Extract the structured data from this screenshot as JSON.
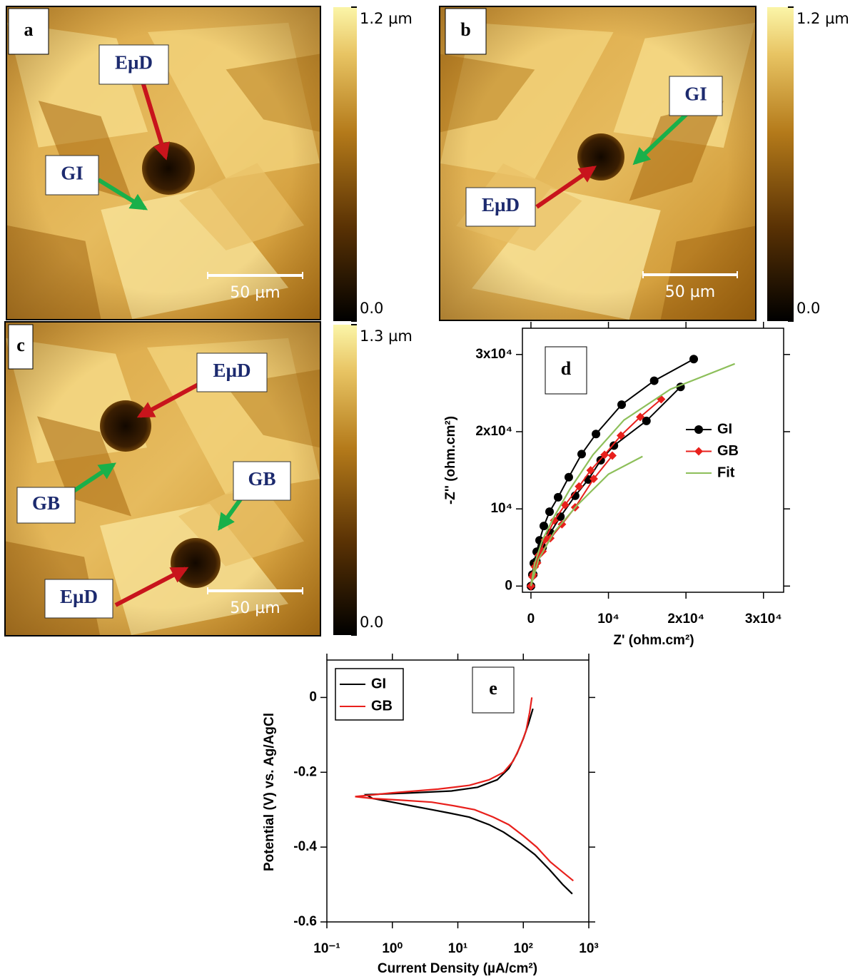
{
  "chart_data": [
    {
      "type": "image",
      "panel_label": "a",
      "scale_bar_label": "50 µm",
      "annotations": [
        "EµD",
        "GI"
      ],
      "colorbar_lim": [
        0,
        1.2
      ],
      "colorbar_ticks": [
        {
          "value": 1.2,
          "label": "1.2 µm"
        },
        {
          "value": 0,
          "label": "0.0"
        }
      ]
    },
    {
      "type": "image",
      "panel_label": "b",
      "scale_bar_label": "50 µm",
      "annotations": [
        "GI",
        "EµD"
      ],
      "colorbar_lim": [
        0,
        1.2
      ],
      "colorbar_ticks": [
        {
          "value": 1.2,
          "label": "1.2 µm"
        },
        {
          "value": 0,
          "label": "0.0"
        }
      ]
    },
    {
      "type": "image",
      "panel_label": "c",
      "scale_bar_label": "50 µm",
      "annotations": [
        "EµD",
        "GB",
        "GB",
        "EµD"
      ],
      "colorbar_lim": [
        0,
        1.3
      ],
      "colorbar_ticks": [
        {
          "value": 1.3,
          "label": "1.3 µm"
        },
        {
          "value": 0,
          "label": "0.0"
        }
      ]
    },
    {
      "type": "line",
      "panel_label": "d",
      "x_label": "Z' (ohm.cm²)",
      "y_label": "-Z'' (ohm.cm²)",
      "xlim": [
        -1100,
        32600
      ],
      "ylim": [
        -800,
        33400
      ],
      "xticks": [
        0,
        {
          "value": 10000,
          "label": "10⁴"
        },
        {
          "value": 20000,
          "label": "2x10⁴"
        },
        {
          "value": 30000,
          "label": "3x10⁴"
        }
      ],
      "yticks": [
        0,
        {
          "value": 10000,
          "label": "10⁴"
        },
        {
          "value": 20000,
          "label": "2x10⁴"
        },
        {
          "value": 30000,
          "label": "3x10⁴"
        }
      ],
      "legend": "center right",
      "series": [
        {
          "name": "GI",
          "color": "#000000",
          "marker": "circle",
          "x": [
            0,
            180,
            370,
            740,
            1110,
            1660,
            2400,
            3500,
            4880,
            6540,
            8390,
            11700,
            15900,
            21000,
            null,
            0,
            300,
            700,
            1500,
            2500,
            3800,
            5700,
            7400,
            9000,
            10700,
            14900,
            19300
          ],
          "values": [
            0,
            1480,
            2960,
            4440,
            5930,
            7780,
            9630,
            11500,
            14100,
            17100,
            19700,
            23500,
            26600,
            29400,
            null,
            0,
            1500,
            3200,
            5000,
            6900,
            9000,
            11700,
            13800,
            16300,
            18200,
            21400,
            25800
          ]
        },
        {
          "name": "GB",
          "color": "#e8201c",
          "marker": "diamond",
          "x": [
            0,
            200,
            500,
            1000,
            1800,
            3000,
            4400,
            6200,
            7700,
            9500,
            11600,
            14100,
            16800,
            null,
            0,
            300,
            800,
            1500,
            2500,
            4000,
            5700,
            8100,
            10500
          ],
          "values": [
            0,
            1200,
            2500,
            4000,
            6000,
            8500,
            10500,
            12900,
            15000,
            17000,
            19500,
            21900,
            24200,
            null,
            0,
            1500,
            3000,
            4500,
            6200,
            8000,
            10200,
            13900,
            16900
          ]
        },
        {
          "name": "Fit",
          "color": "#8dbf5a",
          "marker": null,
          "x": [
            0,
            500,
            1500,
            3000,
            5000,
            8000,
            12000,
            18000,
            26300,
            null,
            0,
            1000,
            3000,
            6000,
            10000,
            14400
          ],
          "values": [
            0,
            3000,
            6000,
            9000,
            12500,
            17000,
            21500,
            25500,
            28800,
            null,
            0,
            3500,
            7000,
            10500,
            14500,
            16800
          ]
        }
      ]
    },
    {
      "type": "line",
      "panel_label": "e",
      "x_label": "Current Density (µA/cm²)",
      "y_label": "Potential (V) vs. Ag/AgCl",
      "xscale": "log",
      "xlim": [
        0.1,
        1000
      ],
      "ylim": [
        -0.6,
        0.1
      ],
      "xticks": [
        {
          "value": 0.1,
          "label": "10⁻¹"
        },
        {
          "value": 1,
          "label": "10⁰"
        },
        {
          "value": 10,
          "label": "10¹"
        },
        {
          "value": 100,
          "label": "10²"
        },
        {
          "value": 1000,
          "label": "10³"
        }
      ],
      "yticks": [
        -0.6,
        -0.4,
        -0.2,
        0
      ],
      "legend": "upper left",
      "series": [
        {
          "name": "GI",
          "color": "#000000",
          "marker": null,
          "x": [
            560,
            400,
            250,
            150,
            90,
            50,
            30,
            15,
            8,
            4,
            2,
            1,
            0.5,
            0.4,
            2,
            8,
            20,
            40,
            60,
            80,
            100,
            120,
            140
          ],
          "values": [
            -0.525,
            -0.5,
            -0.46,
            -0.42,
            -0.39,
            -0.36,
            -0.34,
            -0.32,
            -0.31,
            -0.3,
            -0.29,
            -0.28,
            -0.27,
            -0.26,
            -0.255,
            -0.25,
            -0.24,
            -0.22,
            -0.19,
            -0.15,
            -0.11,
            -0.07,
            -0.03
          ]
        },
        {
          "name": "GB",
          "color": "#e8201c",
          "marker": null,
          "x": [
            580,
            420,
            260,
            160,
            100,
            60,
            35,
            18,
            9,
            4,
            1.5,
            0.5,
            0.27,
            1,
            5,
            15,
            30,
            50,
            70,
            90,
            110,
            125,
            135
          ],
          "values": [
            -0.49,
            -0.47,
            -0.44,
            -0.4,
            -0.37,
            -0.34,
            -0.32,
            -0.3,
            -0.29,
            -0.28,
            -0.275,
            -0.27,
            -0.265,
            -0.255,
            -0.245,
            -0.235,
            -0.22,
            -0.2,
            -0.17,
            -0.13,
            -0.09,
            -0.04,
            0.0
          ]
        }
      ]
    }
  ]
}
